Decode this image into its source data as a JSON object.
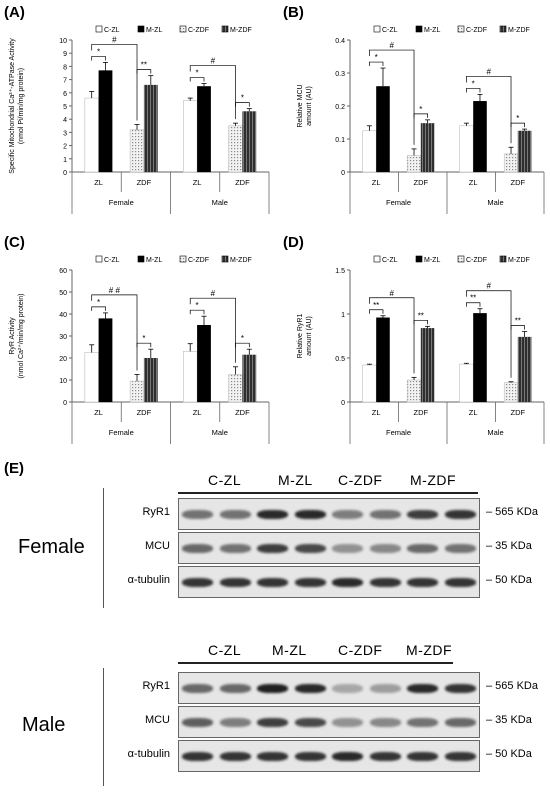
{
  "panels": [
    {
      "letter": "(A)"
    },
    {
      "letter": "(B)"
    },
    {
      "letter": "(C)"
    },
    {
      "letter": "(D)"
    },
    {
      "letter": "(E)"
    }
  ],
  "chart_data": [
    {
      "type": "bar",
      "ylabel_lines": [
        "Specific Mitochondrial Ca²⁺-ATPase Activity",
        "(nmol Pi/min/mg protein)"
      ],
      "ylim": [
        0,
        10
      ],
      "yticks": [
        "0",
        "1",
        "2",
        "3",
        "4",
        "5",
        "6",
        "7",
        "8",
        "9",
        "10"
      ],
      "legend": [
        "C-ZL",
        "M-ZL",
        "C-ZDF",
        "M-ZDF"
      ],
      "groups": [
        "Female",
        "Male"
      ],
      "subgroups": [
        "ZL",
        "ZDF"
      ],
      "series": [
        {
          "name": "C-ZL",
          "values": [
            5.6,
            5.4
          ],
          "errors": [
            0.5,
            0.2
          ]
        },
        {
          "name": "M-ZL",
          "values": [
            7.7,
            6.5
          ],
          "errors": [
            0.6,
            0.2
          ]
        },
        {
          "name": "C-ZDF",
          "values": [
            3.2,
            3.5
          ],
          "errors": [
            0.4,
            0.2
          ]
        },
        {
          "name": "M-ZDF",
          "values": [
            6.6,
            4.6
          ],
          "errors": [
            0.7,
            0.2
          ]
        }
      ],
      "annotations": [
        "*",
        "**",
        "#",
        "*",
        "*",
        "#"
      ]
    },
    {
      "type": "bar",
      "ylabel_lines": [
        "Relative MCU",
        "amount (AU)"
      ],
      "ylim": [
        0,
        0.4
      ],
      "yticks": [
        "0",
        "0.1",
        "0.2",
        "0.3",
        "0.4"
      ],
      "legend": [
        "C-ZL",
        "M-ZL",
        "C-ZDF",
        "M-ZDF"
      ],
      "groups": [
        "Female",
        "Male"
      ],
      "subgroups": [
        "ZL",
        "ZDF"
      ],
      "series": [
        {
          "name": "C-ZL",
          "values": [
            0.125,
            0.14
          ],
          "errors": [
            0.015,
            0.008
          ]
        },
        {
          "name": "M-ZL",
          "values": [
            0.26,
            0.215
          ],
          "errors": [
            0.055,
            0.02
          ]
        },
        {
          "name": "C-ZDF",
          "values": [
            0.05,
            0.055
          ],
          "errors": [
            0.02,
            0.02
          ]
        },
        {
          "name": "M-ZDF",
          "values": [
            0.148,
            0.125
          ],
          "errors": [
            0.01,
            0.005
          ]
        }
      ],
      "annotations": [
        "*",
        "*",
        "#",
        "*",
        "*",
        "#"
      ]
    },
    {
      "type": "bar",
      "ylabel_lines": [
        "RyR Activity",
        "(nmol Ca²⁺/min/mg protein)"
      ],
      "ylim": [
        0,
        60
      ],
      "yticks": [
        "0",
        "10",
        "20",
        "30",
        "40",
        "50",
        "60"
      ],
      "legend": [
        "C-ZL",
        "M-ZL",
        "C-ZDF",
        "M-ZDF"
      ],
      "groups": [
        "Female",
        "Male"
      ],
      "subgroups": [
        "ZL",
        "ZDF"
      ],
      "series": [
        {
          "name": "C-ZL",
          "values": [
            22.5,
            23.0
          ],
          "errors": [
            3.5,
            3.5
          ]
        },
        {
          "name": "M-ZL",
          "values": [
            38.0,
            35.0
          ],
          "errors": [
            2.5,
            4.0
          ]
        },
        {
          "name": "C-ZDF",
          "values": [
            9.5,
            12.5
          ],
          "errors": [
            3.0,
            3.5
          ]
        },
        {
          "name": "M-ZDF",
          "values": [
            20.0,
            21.5
          ],
          "errors": [
            4.0,
            2.5
          ]
        }
      ],
      "annotations": [
        "*",
        "*",
        "# #",
        "*",
        "*",
        "#"
      ]
    },
    {
      "type": "bar",
      "ylabel_lines": [
        "Relative RyR1",
        "amount (AU)"
      ],
      "ylim": [
        0,
        1.5
      ],
      "yticks": [
        "0",
        "0.5",
        "1",
        "1.5"
      ],
      "legend": [
        "C-ZL",
        "M-ZL",
        "C-ZDF",
        "M-ZDF"
      ],
      "groups": [
        "Female",
        "Male"
      ],
      "subgroups": [
        "ZL",
        "ZDF"
      ],
      "series": [
        {
          "name": "C-ZL",
          "values": [
            0.42,
            0.43
          ],
          "errors": [
            0.01,
            0.01
          ]
        },
        {
          "name": "M-ZL",
          "values": [
            0.96,
            1.01
          ],
          "errors": [
            0.02,
            0.05
          ]
        },
        {
          "name": "C-ZDF",
          "values": [
            0.25,
            0.22
          ],
          "errors": [
            0.03,
            0.01
          ]
        },
        {
          "name": "M-ZDF",
          "values": [
            0.84,
            0.74
          ],
          "errors": [
            0.02,
            0.06
          ]
        }
      ],
      "annotations": [
        "**",
        "**",
        "#",
        "**",
        "**",
        "#"
      ]
    }
  ],
  "western_blot": {
    "female": {
      "sex_label": "Female",
      "lanes": [
        "C-ZL",
        "M-ZL",
        "C-ZDF",
        "M-ZDF"
      ],
      "rows": [
        {
          "label": "RyR1",
          "size": "565 KDa",
          "intensity": [
            0.55,
            0.55,
            0.9,
            0.9,
            0.5,
            0.55,
            0.8,
            0.85
          ]
        },
        {
          "label": "MCU",
          "size": "35 KDa",
          "intensity": [
            0.6,
            0.55,
            0.8,
            0.75,
            0.4,
            0.45,
            0.6,
            0.55
          ]
        },
        {
          "label": "α-tubulin",
          "size": "50 KDa",
          "intensity": [
            0.85,
            0.85,
            0.85,
            0.85,
            0.9,
            0.85,
            0.85,
            0.85
          ]
        }
      ]
    },
    "male": {
      "sex_label": "Male",
      "lanes": [
        "C-ZL",
        "M-ZL",
        "C-ZDF",
        "M-ZDF"
      ],
      "rows": [
        {
          "label": "RyR1",
          "size": "565 KDa",
          "intensity": [
            0.6,
            0.6,
            0.95,
            0.9,
            0.3,
            0.35,
            0.9,
            0.85
          ]
        },
        {
          "label": "MCU",
          "size": "35 KDa",
          "intensity": [
            0.65,
            0.5,
            0.8,
            0.75,
            0.4,
            0.45,
            0.55,
            0.6
          ]
        },
        {
          "label": "α-tubulin",
          "size": "50 KDa",
          "intensity": [
            0.85,
            0.85,
            0.85,
            0.85,
            0.9,
            0.85,
            0.85,
            0.85
          ]
        }
      ]
    }
  },
  "colors": {
    "c_zl": "#ffffff",
    "m_zl": "#000000",
    "c_zdf": "#d9d9d9",
    "m_zdf": "#3a3a3a"
  }
}
